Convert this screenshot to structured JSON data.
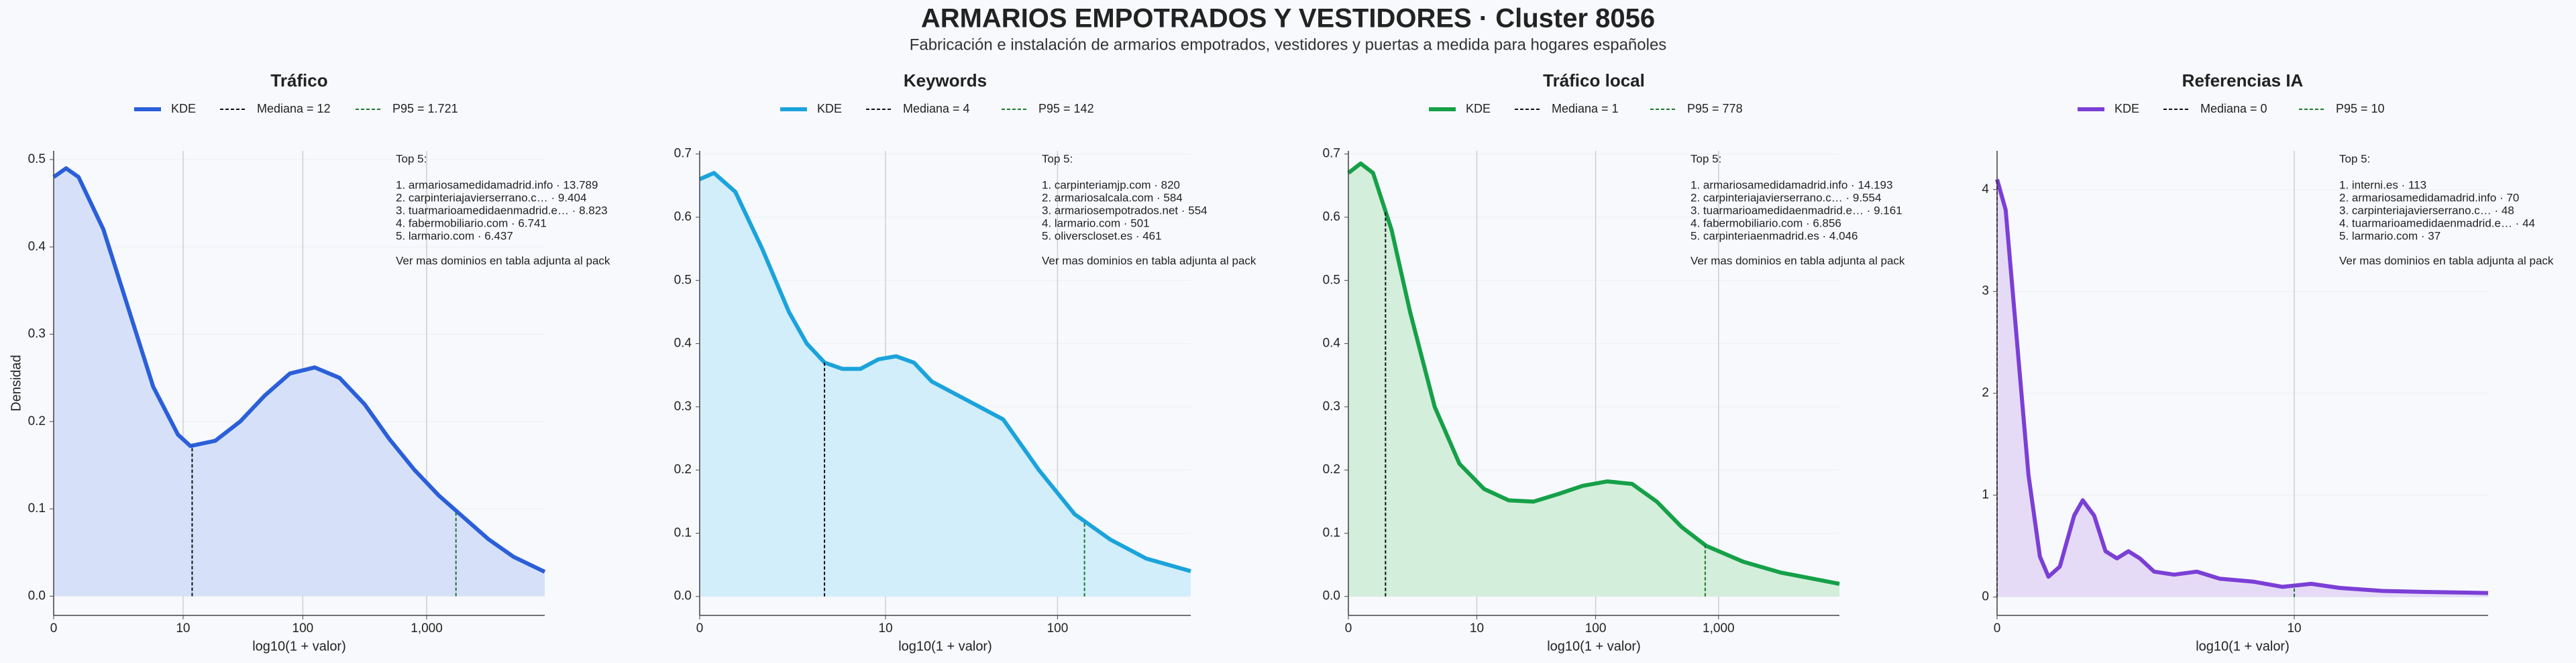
{
  "title": "ARMARIOS EMPOTRADOS Y VESTIDORES · Cluster 8056",
  "subtitle": "Fabricación e instalación de armarios empotrados, vestidores y puertas a medida para hogares españoles",
  "chart_data": [
    {
      "type": "area",
      "title": "Tráfico",
      "xlabel": "log10(1 + valor)",
      "ylabel": "Densidad",
      "x": [
        0,
        0.1,
        0.2,
        0.4,
        0.6,
        0.8,
        1.0,
        1.1,
        1.3,
        1.5,
        1.7,
        1.9,
        2.1,
        2.3,
        2.5,
        2.7,
        2.9,
        3.1,
        3.3,
        3.5,
        3.7,
        3.95
      ],
      "series": [
        {
          "name": "KDE",
          "color": "#2b5fd9",
          "fill": "#d6e1f9",
          "values": [
            0.48,
            0.49,
            0.48,
            0.42,
            0.33,
            0.24,
            0.185,
            0.172,
            0.178,
            0.2,
            0.23,
            0.255,
            0.262,
            0.25,
            0.22,
            0.18,
            0.145,
            0.115,
            0.09,
            0.065,
            0.045,
            0.028
          ]
        }
      ],
      "median": {
        "label": "Mediana = 12",
        "x": 1.114,
        "color": "#111111"
      },
      "p95": {
        "label": "P95 = 1.721",
        "x": 3.236,
        "color": "#1a7a2a"
      },
      "annotation": {
        "heading": "Top 5:",
        "items": [
          "1. armariosamedidamadrid.info · 13.789",
          "2. carpinteriajavierserrano.c… · 9.404",
          "3. tuarmarioamedidaenmadrid.e… · 8.823",
          "4. fabermobiliario.com · 6.741",
          "5. larmario.com · 6.437"
        ],
        "footer": "Ver mas dominios en tabla adjunta al pack"
      },
      "xlim": [
        0,
        3.95
      ],
      "ylim": [
        -0.022,
        0.51
      ],
      "xticks": [
        0,
        {
          "value": 1.041,
          "label": "10"
        },
        {
          "value": 2.004,
          "label": "100"
        },
        {
          "value": 3.0004,
          "label": "1,000"
        }
      ],
      "yticks": [
        {
          "value": 0,
          "label": "0.0"
        },
        0.1,
        0.2,
        0.3,
        0.4,
        0.5
      ],
      "grid": true
    },
    {
      "type": "area",
      "title": "Keywords",
      "xlabel": "log10(1 + valor)",
      "x": [
        0,
        0.08,
        0.2,
        0.35,
        0.5,
        0.6,
        0.7,
        0.8,
        0.9,
        1.0,
        1.1,
        1.2,
        1.3,
        1.5,
        1.7,
        1.9,
        2.1,
        2.3,
        2.5,
        2.75
      ],
      "series": [
        {
          "name": "KDE",
          "color": "#1ba3db",
          "fill": "#d2eefa",
          "values": [
            0.66,
            0.67,
            0.64,
            0.55,
            0.45,
            0.4,
            0.37,
            0.36,
            0.36,
            0.375,
            0.38,
            0.37,
            0.34,
            0.31,
            0.28,
            0.2,
            0.13,
            0.09,
            0.06,
            0.04
          ]
        }
      ],
      "median": {
        "label": "Mediana = 4",
        "x": 0.699,
        "color": "#111111"
      },
      "p95": {
        "label": "P95 = 142",
        "x": 2.155,
        "color": "#1a7a2a"
      },
      "annotation": {
        "heading": "Top 5:",
        "items": [
          "1. carpinteriamjp.com · 820",
          "2. armariosalcala.com · 584",
          "3. armariosempotrados.net · 554",
          "4. larmario.com · 501",
          "5. oliverscloset.es · 461"
        ],
        "footer": "Ver mas dominios en tabla adjunta al pack"
      },
      "xlim": [
        0,
        2.75
      ],
      "ylim": [
        -0.03,
        0.705
      ],
      "xticks": [
        0,
        {
          "value": 1.041,
          "label": "10"
        },
        {
          "value": 2.004,
          "label": "100"
        }
      ],
      "yticks": [
        {
          "value": 0,
          "label": "0.0"
        },
        0.1,
        0.2,
        0.3,
        0.4,
        0.5,
        0.6,
        0.7
      ],
      "grid": true
    },
    {
      "type": "area",
      "title": "Tráfico local",
      "xlabel": "log10(1 + valor)",
      "x": [
        0,
        0.1,
        0.2,
        0.35,
        0.5,
        0.7,
        0.9,
        1.1,
        1.3,
        1.5,
        1.7,
        1.9,
        2.1,
        2.3,
        2.5,
        2.7,
        2.9,
        3.2,
        3.5,
        3.98
      ],
      "series": [
        {
          "name": "KDE",
          "color": "#16a048",
          "fill": "#d3eedb",
          "values": [
            0.67,
            0.685,
            0.67,
            0.58,
            0.45,
            0.3,
            0.21,
            0.17,
            0.152,
            0.15,
            0.162,
            0.175,
            0.182,
            0.178,
            0.15,
            0.11,
            0.08,
            0.055,
            0.038,
            0.02
          ]
        }
      ],
      "median": {
        "label": "Mediana = 1",
        "x": 0.301,
        "color": "#111111"
      },
      "p95": {
        "label": "P95 = 778",
        "x": 2.892,
        "color": "#1a7a2a"
      },
      "annotation": {
        "heading": "Top 5:",
        "items": [
          "1. armariosamedidamadrid.info · 14.193",
          "2. carpinteriajavierserrano.c… · 9.554",
          "3. tuarmarioamedidaenmadrid.e… · 9.161",
          "4. fabermobiliario.com · 6.856",
          "5. carpinteriaenmadrid.es · 4.046"
        ],
        "footer": "Ver mas dominios en tabla adjunta al pack"
      },
      "xlim": [
        0,
        3.98
      ],
      "ylim": [
        -0.03,
        0.705
      ],
      "xticks": [
        0,
        {
          "value": 1.041,
          "label": "10"
        },
        {
          "value": 2.004,
          "label": "100"
        },
        {
          "value": 3.0004,
          "label": "1,000"
        }
      ],
      "yticks": [
        {
          "value": 0,
          "label": "0.0"
        },
        0.1,
        0.2,
        0.3,
        0.4,
        0.5,
        0.6,
        0.7
      ],
      "grid": true
    },
    {
      "type": "area",
      "title": "Referencias IA",
      "xlabel": "log10(1 + valor)",
      "x": [
        0,
        0.03,
        0.07,
        0.11,
        0.15,
        0.18,
        0.22,
        0.27,
        0.3,
        0.34,
        0.38,
        0.42,
        0.46,
        0.5,
        0.55,
        0.62,
        0.7,
        0.78,
        0.9,
        1.0,
        1.1,
        1.2,
        1.35,
        1.5,
        1.72
      ],
      "series": [
        {
          "name": "KDE",
          "color": "#7b3fd6",
          "fill": "#e6dbf7",
          "values": [
            4.1,
            3.8,
            2.5,
            1.2,
            0.4,
            0.2,
            0.3,
            0.8,
            0.95,
            0.8,
            0.45,
            0.38,
            0.45,
            0.38,
            0.25,
            0.22,
            0.25,
            0.18,
            0.15,
            0.1,
            0.13,
            0.09,
            0.06,
            0.05,
            0.04
          ]
        }
      ],
      "median": {
        "label": "Mediana = 0",
        "x": 0,
        "color": "#111111"
      },
      "p95": {
        "label": "P95 = 10",
        "x": 1.041,
        "color": "#1a7a2a"
      },
      "annotation": {
        "heading": "Top 5:",
        "items": [
          "1. interni.es · 113",
          "2. armariosamedidamadrid.info · 70",
          "3. carpinteriajavierserrano.c… · 48",
          "4. tuarmarioamedidaenmadrid.e… · 44",
          "5. larmario.com · 37"
        ],
        "footer": "Ver mas dominios en tabla adjunta al pack"
      },
      "xlim": [
        0,
        1.72
      ],
      "ylim": [
        -0.18,
        4.38
      ],
      "xticks": [
        0,
        {
          "value": 1.041,
          "label": "10"
        }
      ],
      "yticks": [
        0,
        1,
        2,
        3,
        4
      ],
      "grid": true
    }
  ]
}
